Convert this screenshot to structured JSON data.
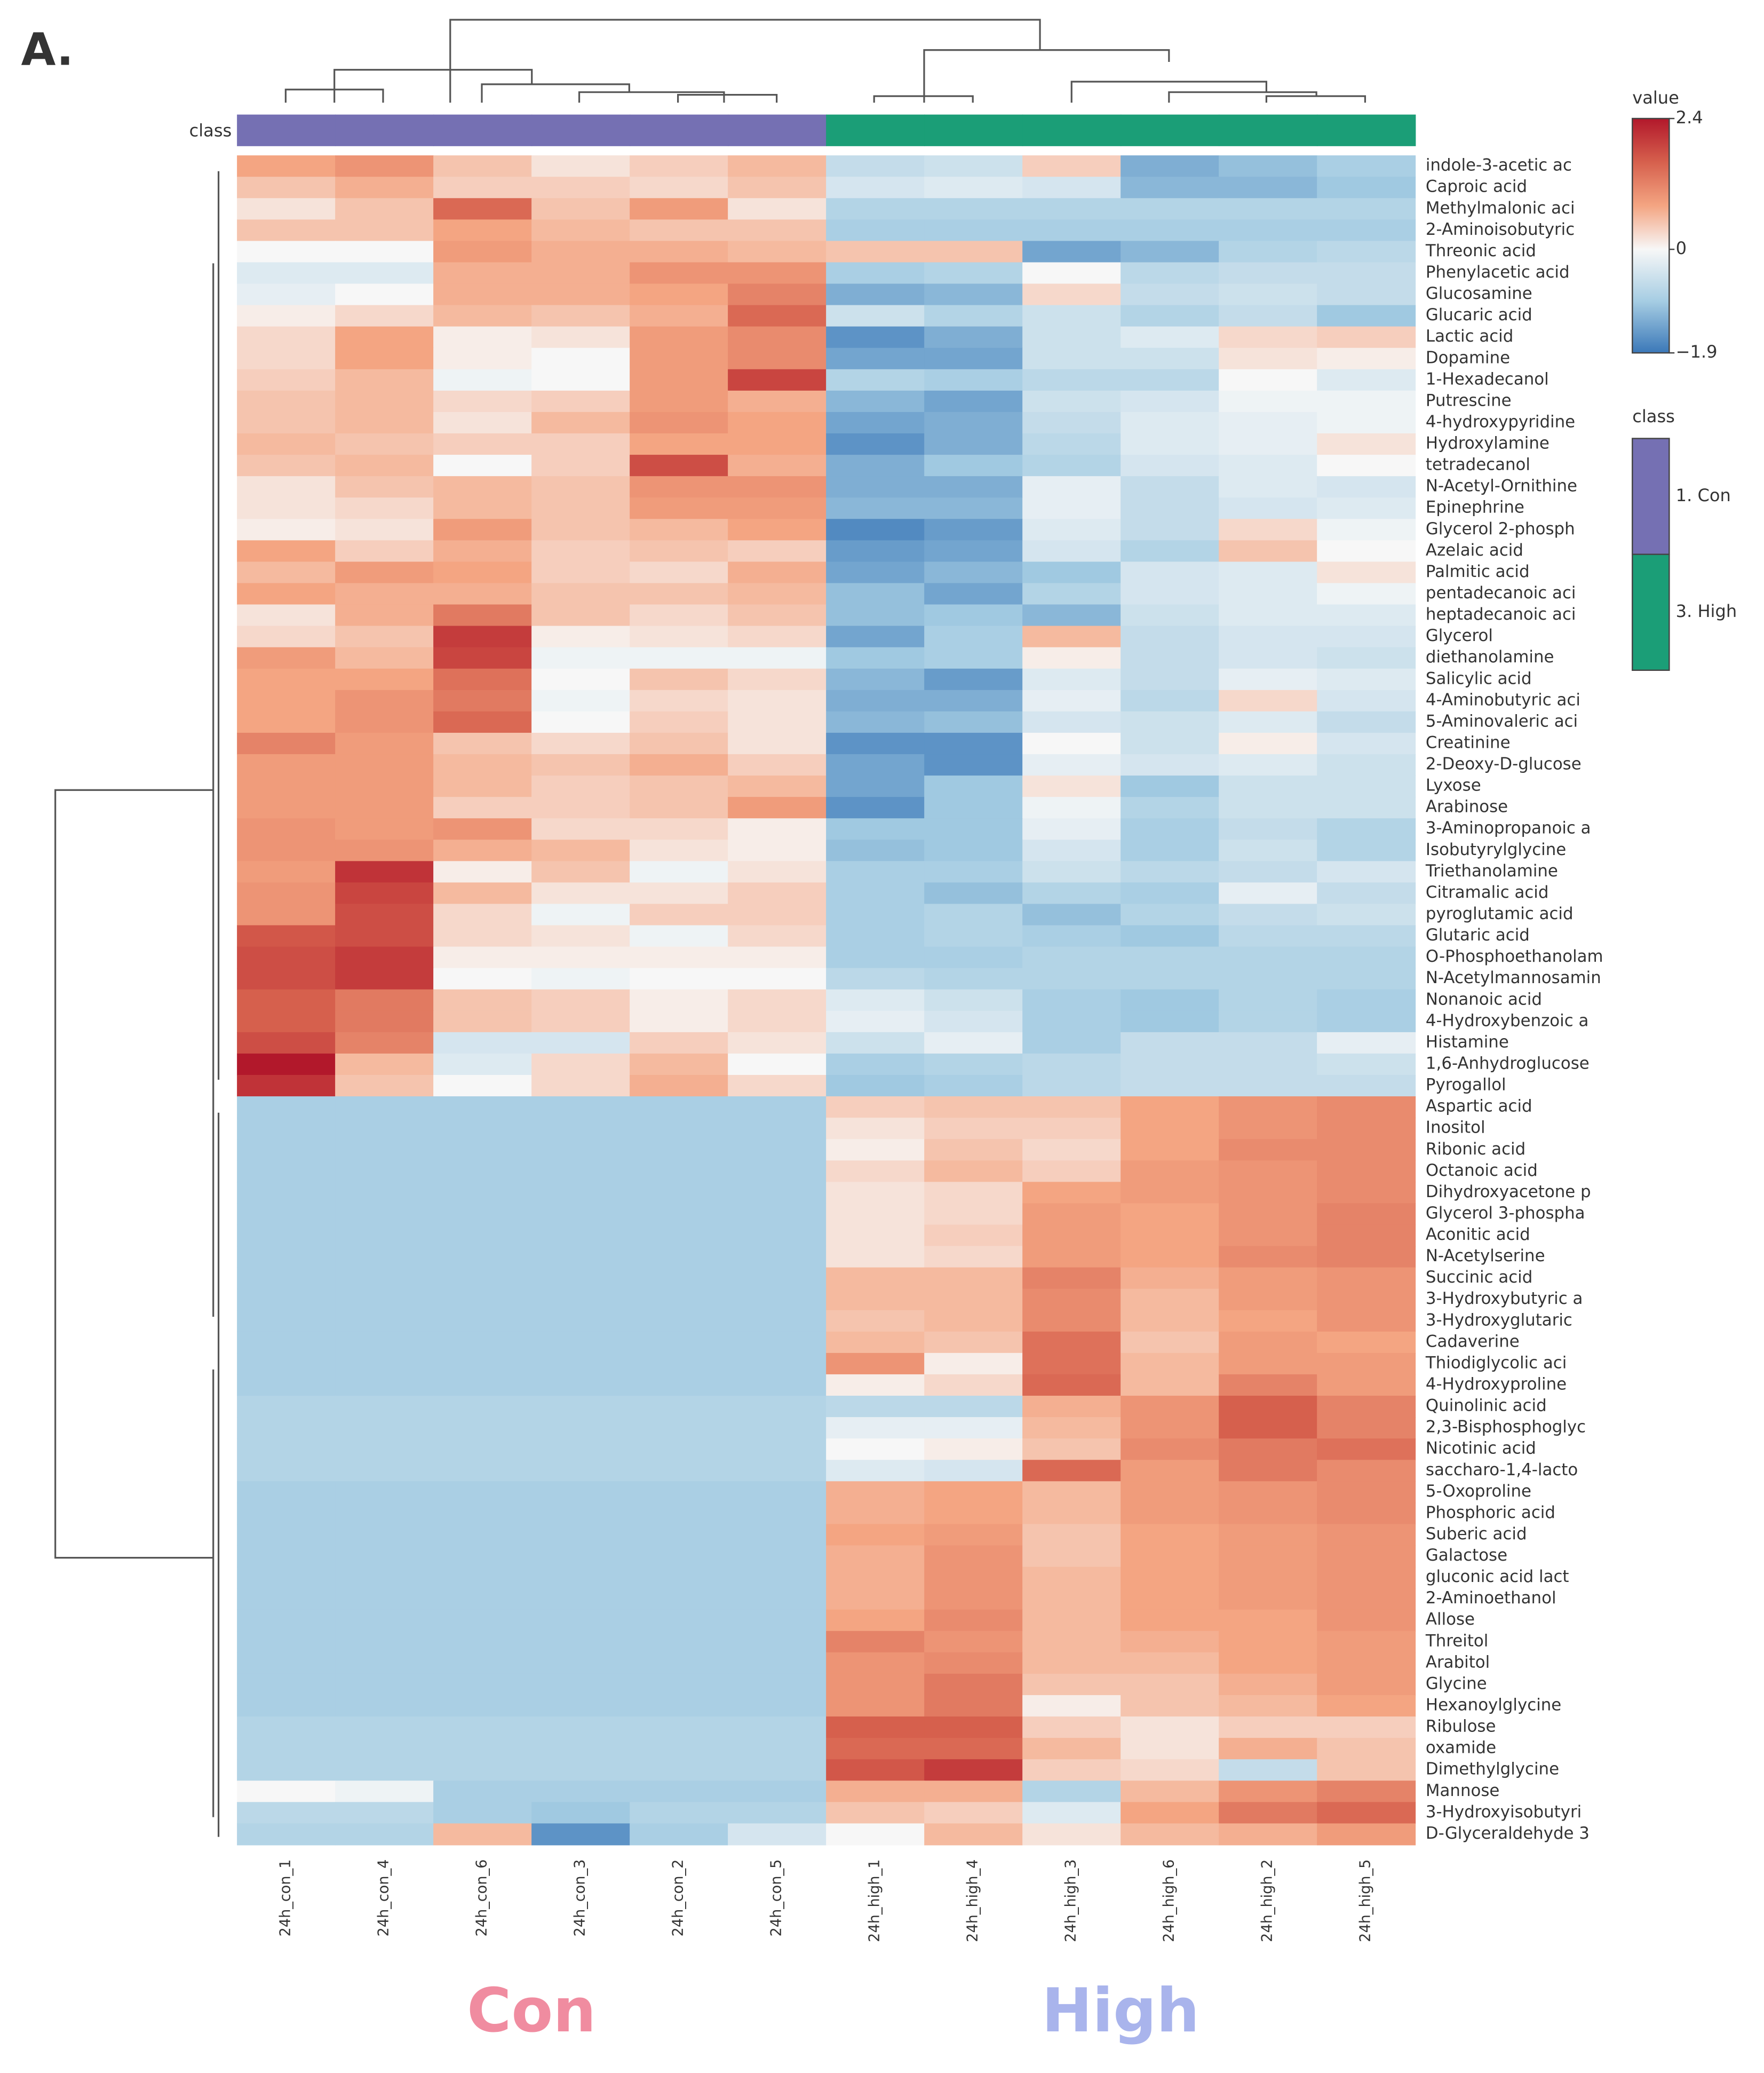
{
  "chart_data": {
    "type": "heatmap",
    "panel_label": "A.",
    "class_axis_label": "class",
    "rows": [
      "indole-3-acetic ac",
      "Caproic acid",
      "Methylmalonic aci",
      "2-Aminoisobutyric",
      "Threonic acid",
      "Phenylacetic acid",
      "Glucosamine",
      "Glucaric acid",
      "Lactic acid",
      "Dopamine",
      "1-Hexadecanol",
      "Putrescine",
      "4-hydroxypyridine",
      "Hydroxylamine",
      "tetradecanol",
      "N-Acetyl-Ornithine",
      "Epinephrine",
      "Glycerol 2-phosph",
      "Azelaic acid",
      "Palmitic acid",
      "pentadecanoic aci",
      "heptadecanoic aci",
      "Glycerol",
      "diethanolamine",
      "Salicylic acid",
      "4-Aminobutyric aci",
      "5-Aminovaleric aci",
      "Creatinine",
      "2-Deoxy-D-glucose",
      "Lyxose",
      "Arabinose",
      "3-Aminopropanoic a",
      "Isobutyrylglycine",
      "Triethanolamine",
      "Citramalic acid",
      "pyroglutamic acid",
      "Glutaric acid",
      "O-Phosphoethanolam",
      "N-Acetylmannosamin",
      "Nonanoic acid",
      "4-Hydroxybenzoic a",
      "Histamine",
      "1,6-Anhydroglucose",
      "Pyrogallol",
      "Aspartic acid",
      "Inositol",
      "Ribonic acid",
      "Octanoic acid",
      "Dihydroxyacetone p",
      "Glycerol 3-phospha",
      "Aconitic acid",
      "N-Acetylserine",
      "Succinic acid",
      "3-Hydroxybutyric a",
      "3-Hydroxyglutaric",
      "Cadaverine",
      "Thiodiglycolic aci",
      "4-Hydroxyproline",
      "Quinolinic acid",
      "2,3-Bisphosphoglyc",
      "Nicotinic acid",
      "saccharo-1,4-lacto",
      "5-Oxoproline",
      "Phosphoric acid",
      "Suberic acid",
      "Galactose",
      "gluconic acid lact",
      "2-Aminoethanol",
      "Allose",
      "Threitol",
      "Arabitol",
      "Glycine",
      "Hexanoylglycine",
      "Ribulose",
      "oxamide",
      "Dimethylglycine",
      "Mannose",
      "3-Hydroxyisobutyri",
      "D-Glyceraldehyde 3"
    ],
    "columns": [
      "24h_con_1",
      "24h_con_4",
      "24h_con_6",
      "24h_con_3",
      "24h_con_2",
      "24h_con_5",
      "24h_high_1",
      "24h_high_4",
      "24h_high_3",
      "24h_high_6",
      "24h_high_2",
      "24h_high_5"
    ],
    "values": [
      [
        0.8,
        1.0,
        0.5,
        0.2,
        0.4,
        0.6,
        -0.6,
        -0.5,
        0.4,
        -1.3,
        -1.1,
        -0.9
      ],
      [
        0.5,
        0.7,
        0.4,
        0.4,
        0.3,
        0.5,
        -0.4,
        -0.3,
        -0.4,
        -1.2,
        -1.2,
        -1.0
      ],
      [
        0.2,
        0.5,
        1.5,
        0.5,
        0.9,
        0.2,
        -0.8,
        -0.8,
        -0.8,
        -0.8,
        -0.8,
        -0.8
      ],
      [
        0.5,
        0.5,
        0.8,
        0.6,
        0.5,
        0.5,
        -0.9,
        -0.9,
        -0.9,
        -0.9,
        -0.9,
        -0.9
      ],
      [
        0.0,
        0.0,
        0.9,
        0.7,
        0.7,
        0.6,
        0.5,
        0.5,
        -1.4,
        -1.2,
        -0.8,
        -0.7
      ],
      [
        -0.3,
        -0.3,
        0.7,
        0.7,
        1.0,
        1.0,
        -0.9,
        -0.8,
        0.0,
        -0.7,
        -0.6,
        -0.6
      ],
      [
        -0.2,
        0.0,
        0.7,
        0.7,
        0.8,
        1.2,
        -1.3,
        -1.2,
        0.3,
        -0.6,
        -0.5,
        -0.6
      ],
      [
        0.1,
        0.3,
        0.6,
        0.5,
        0.7,
        1.5,
        -0.5,
        -0.8,
        -0.5,
        -0.8,
        -0.6,
        -1.0
      ],
      [
        0.3,
        0.8,
        0.1,
        0.2,
        0.9,
        1.1,
        -1.6,
        -1.3,
        -0.5,
        -0.3,
        0.3,
        0.4
      ],
      [
        0.3,
        0.8,
        0.1,
        0.0,
        0.9,
        1.1,
        -1.4,
        -1.4,
        -0.5,
        -0.5,
        0.2,
        0.1
      ],
      [
        0.4,
        0.6,
        -0.1,
        0.0,
        0.9,
        1.9,
        -0.8,
        -0.9,
        -0.7,
        -0.7,
        0.0,
        -0.3
      ],
      [
        0.5,
        0.6,
        0.3,
        0.4,
        0.9,
        0.7,
        -1.2,
        -1.4,
        -0.5,
        -0.4,
        -0.1,
        -0.1
      ],
      [
        0.5,
        0.6,
        0.2,
        0.6,
        1.0,
        0.8,
        -1.4,
        -1.3,
        -0.6,
        -0.3,
        -0.2,
        -0.1
      ],
      [
        0.6,
        0.5,
        0.4,
        0.4,
        0.8,
        0.8,
        -1.6,
        -1.3,
        -0.7,
        -0.3,
        -0.2,
        0.2
      ],
      [
        0.5,
        0.6,
        0.0,
        0.4,
        1.8,
        0.7,
        -1.3,
        -1.0,
        -0.8,
        -0.4,
        -0.3,
        0.0
      ],
      [
        0.2,
        0.5,
        0.6,
        0.5,
        1.0,
        1.0,
        -1.3,
        -1.3,
        -0.2,
        -0.6,
        -0.3,
        -0.4
      ],
      [
        0.2,
        0.3,
        0.6,
        0.5,
        0.9,
        0.9,
        -1.2,
        -1.2,
        -0.2,
        -0.6,
        -0.4,
        -0.3
      ],
      [
        0.1,
        0.2,
        0.9,
        0.5,
        0.6,
        0.8,
        -1.7,
        -1.5,
        -0.3,
        -0.6,
        0.3,
        -0.1
      ],
      [
        0.8,
        0.4,
        0.7,
        0.4,
        0.5,
        0.4,
        -1.5,
        -1.4,
        -0.4,
        -0.8,
        0.5,
        0.0
      ],
      [
        0.6,
        0.9,
        0.8,
        0.4,
        0.3,
        0.7,
        -1.4,
        -1.2,
        -1.0,
        -0.4,
        -0.3,
        0.2
      ],
      [
        0.8,
        0.7,
        0.7,
        0.5,
        0.5,
        0.6,
        -1.1,
        -1.4,
        -0.8,
        -0.4,
        -0.3,
        -0.1
      ],
      [
        0.2,
        0.7,
        1.3,
        0.5,
        0.3,
        0.5,
        -1.1,
        -1.0,
        -1.2,
        -0.5,
        -0.3,
        -0.3
      ],
      [
        0.3,
        0.5,
        2.0,
        0.1,
        0.2,
        0.3,
        -1.4,
        -0.9,
        0.6,
        -0.6,
        -0.4,
        -0.4
      ],
      [
        0.9,
        0.6,
        1.9,
        -0.1,
        -0.1,
        -0.1,
        -1.0,
        -0.9,
        0.1,
        -0.6,
        -0.4,
        -0.5
      ],
      [
        0.8,
        0.8,
        1.4,
        0.0,
        0.5,
        0.3,
        -1.2,
        -1.5,
        -0.3,
        -0.6,
        -0.2,
        -0.3
      ],
      [
        0.8,
        1.0,
        1.3,
        -0.1,
        0.3,
        0.2,
        -1.3,
        -1.3,
        -0.2,
        -0.7,
        0.3,
        -0.4
      ],
      [
        0.8,
        1.0,
        1.5,
        0.0,
        0.4,
        0.2,
        -1.2,
        -1.1,
        -0.4,
        -0.5,
        -0.3,
        -0.6
      ],
      [
        1.2,
        0.9,
        0.5,
        0.3,
        0.5,
        0.2,
        -1.6,
        -1.6,
        0.0,
        -0.5,
        0.1,
        -0.4
      ],
      [
        0.9,
        0.9,
        0.6,
        0.5,
        0.7,
        0.4,
        -1.4,
        -1.6,
        -0.2,
        -0.4,
        -0.3,
        -0.5
      ],
      [
        0.9,
        0.9,
        0.6,
        0.4,
        0.5,
        0.6,
        -1.4,
        -1.0,
        0.2,
        -1.0,
        -0.5,
        -0.5
      ],
      [
        0.9,
        0.9,
        0.4,
        0.4,
        0.5,
        0.9,
        -1.6,
        -1.0,
        -0.1,
        -0.8,
        -0.5,
        -0.5
      ],
      [
        1.0,
        0.9,
        1.0,
        0.3,
        0.3,
        0.1,
        -1.0,
        -1.0,
        -0.2,
        -0.9,
        -0.6,
        -0.8
      ],
      [
        1.0,
        1.0,
        0.7,
        0.6,
        0.2,
        0.1,
        -1.1,
        -1.0,
        -0.4,
        -0.9,
        -0.5,
        -0.8
      ],
      [
        0.9,
        2.1,
        0.1,
        0.5,
        -0.1,
        0.2,
        -0.9,
        -0.9,
        -0.5,
        -0.7,
        -0.6,
        -0.4
      ],
      [
        1.0,
        1.9,
        0.6,
        0.2,
        0.2,
        0.4,
        -0.9,
        -1.1,
        -0.8,
        -0.9,
        -0.2,
        -0.6
      ],
      [
        1.0,
        1.8,
        0.3,
        -0.1,
        0.4,
        0.4,
        -0.9,
        -0.8,
        -1.1,
        -0.8,
        -0.6,
        -0.5
      ],
      [
        1.7,
        1.8,
        0.3,
        0.2,
        -0.1,
        0.3,
        -0.9,
        -0.8,
        -0.9,
        -1.0,
        -0.7,
        -0.7
      ],
      [
        1.8,
        2.0,
        0.1,
        0.1,
        0.1,
        0.1,
        -0.9,
        -0.9,
        -0.8,
        -0.8,
        -0.8,
        -0.8
      ],
      [
        1.8,
        2.0,
        0.0,
        -0.1,
        0.0,
        0.0,
        -0.7,
        -0.8,
        -0.8,
        -0.8,
        -0.8,
        -0.8
      ],
      [
        1.6,
        1.3,
        0.5,
        0.4,
        0.1,
        0.3,
        -0.3,
        -0.5,
        -0.9,
        -1.0,
        -0.8,
        -0.9
      ],
      [
        1.6,
        1.3,
        0.5,
        0.4,
        0.1,
        0.3,
        -0.2,
        -0.4,
        -0.9,
        -1.0,
        -0.8,
        -0.9
      ],
      [
        1.8,
        1.2,
        -0.4,
        -0.4,
        0.4,
        0.2,
        -0.5,
        -0.2,
        -0.9,
        -0.6,
        -0.6,
        -0.2
      ],
      [
        2.4,
        0.6,
        -0.3,
        0.3,
        0.6,
        0.0,
        -0.9,
        -0.8,
        -0.7,
        -0.6,
        -0.6,
        -0.5
      ],
      [
        2.1,
        0.5,
        0.0,
        0.3,
        0.7,
        0.3,
        -1.0,
        -0.9,
        -0.7,
        -0.6,
        -0.6,
        -0.6
      ],
      [
        -0.9,
        -0.9,
        -0.9,
        -0.9,
        -0.9,
        -0.9,
        0.4,
        0.5,
        0.5,
        0.8,
        1.0,
        1.1
      ],
      [
        -0.9,
        -0.9,
        -0.9,
        -0.9,
        -0.9,
        -0.9,
        0.2,
        0.4,
        0.4,
        0.8,
        1.0,
        1.1
      ],
      [
        -0.9,
        -0.9,
        -0.9,
        -0.9,
        -0.9,
        -0.9,
        0.1,
        0.5,
        0.3,
        0.8,
        1.1,
        1.1
      ],
      [
        -0.9,
        -0.9,
        -0.9,
        -0.9,
        -0.9,
        -0.9,
        0.3,
        0.6,
        0.4,
        0.9,
        1.0,
        1.1
      ],
      [
        -0.9,
        -0.9,
        -0.9,
        -0.9,
        -0.9,
        -0.9,
        0.2,
        0.3,
        0.8,
        0.9,
        1.0,
        1.1
      ],
      [
        -0.9,
        -0.9,
        -0.9,
        -0.9,
        -0.9,
        -0.9,
        0.2,
        0.3,
        0.9,
        0.8,
        1.0,
        1.2
      ],
      [
        -0.9,
        -0.9,
        -0.9,
        -0.9,
        -0.9,
        -0.9,
        0.2,
        0.4,
        0.9,
        0.8,
        1.0,
        1.2
      ],
      [
        -0.9,
        -0.9,
        -0.9,
        -0.9,
        -0.9,
        -0.9,
        0.2,
        0.3,
        0.9,
        0.8,
        1.1,
        1.2
      ],
      [
        -0.9,
        -0.9,
        -0.9,
        -0.9,
        -0.9,
        -0.9,
        0.6,
        0.6,
        1.2,
        0.7,
        0.9,
        1.0
      ],
      [
        -0.9,
        -0.9,
        -0.9,
        -0.9,
        -0.9,
        -0.9,
        0.6,
        0.6,
        1.1,
        0.6,
        0.9,
        1.0
      ],
      [
        -0.9,
        -0.9,
        -0.9,
        -0.9,
        -0.9,
        -0.9,
        0.5,
        0.6,
        1.1,
        0.6,
        0.8,
        1.0
      ],
      [
        -0.9,
        -0.9,
        -0.9,
        -0.9,
        -0.9,
        -0.9,
        0.6,
        0.5,
        1.4,
        0.5,
        0.9,
        0.8
      ],
      [
        -0.9,
        -0.9,
        -0.9,
        -0.9,
        -0.9,
        -0.9,
        1.0,
        0.1,
        1.4,
        0.6,
        0.9,
        0.9
      ],
      [
        -0.9,
        -0.9,
        -0.9,
        -0.9,
        -0.9,
        -0.9,
        0.1,
        0.3,
        1.5,
        0.6,
        1.2,
        0.9
      ],
      [
        -0.8,
        -0.8,
        -0.8,
        -0.8,
        -0.8,
        -0.8,
        -0.7,
        -0.7,
        0.7,
        1.0,
        1.6,
        1.2
      ],
      [
        -0.8,
        -0.8,
        -0.8,
        -0.8,
        -0.8,
        -0.8,
        -0.2,
        -0.2,
        0.6,
        1.0,
        1.6,
        1.2
      ],
      [
        -0.8,
        -0.8,
        -0.8,
        -0.8,
        -0.8,
        -0.8,
        0.0,
        0.1,
        0.5,
        1.1,
        1.3,
        1.4
      ],
      [
        -0.8,
        -0.8,
        -0.8,
        -0.8,
        -0.8,
        -0.8,
        -0.3,
        -0.4,
        1.5,
        0.9,
        1.3,
        1.1
      ],
      [
        -0.9,
        -0.9,
        -0.9,
        -0.9,
        -0.9,
        -0.9,
        0.7,
        0.8,
        0.6,
        0.9,
        1.0,
        1.1
      ],
      [
        -0.9,
        -0.9,
        -0.9,
        -0.9,
        -0.9,
        -0.9,
        0.7,
        0.8,
        0.6,
        0.9,
        1.0,
        1.1
      ],
      [
        -0.9,
        -0.9,
        -0.9,
        -0.9,
        -0.9,
        -0.9,
        0.8,
        0.9,
        0.5,
        0.8,
        0.9,
        1.0
      ],
      [
        -0.9,
        -0.9,
        -0.9,
        -0.9,
        -0.9,
        -0.9,
        0.7,
        1.0,
        0.5,
        0.8,
        0.9,
        1.0
      ],
      [
        -0.9,
        -0.9,
        -0.9,
        -0.9,
        -0.9,
        -0.9,
        0.7,
        1.0,
        0.6,
        0.8,
        0.9,
        1.0
      ],
      [
        -0.9,
        -0.9,
        -0.9,
        -0.9,
        -0.9,
        -0.9,
        0.7,
        1.0,
        0.6,
        0.8,
        0.9,
        1.0
      ],
      [
        -0.9,
        -0.9,
        -0.9,
        -0.9,
        -0.9,
        -0.9,
        0.8,
        1.1,
        0.6,
        0.8,
        0.8,
        1.0
      ],
      [
        -0.9,
        -0.9,
        -0.9,
        -0.9,
        -0.9,
        -0.9,
        1.2,
        1.0,
        0.6,
        0.7,
        0.8,
        0.9
      ],
      [
        -0.9,
        -0.9,
        -0.9,
        -0.9,
        -0.9,
        -0.9,
        1.0,
        1.1,
        0.6,
        0.6,
        0.8,
        0.9
      ],
      [
        -0.9,
        -0.9,
        -0.9,
        -0.9,
        -0.9,
        -0.9,
        1.0,
        1.3,
        0.5,
        0.5,
        0.7,
        0.9
      ],
      [
        -0.9,
        -0.9,
        -0.9,
        -0.9,
        -0.9,
        -0.9,
        1.0,
        1.3,
        0.1,
        0.5,
        0.6,
        0.8
      ],
      [
        -0.8,
        -0.8,
        -0.8,
        -0.8,
        -0.8,
        -0.8,
        1.6,
        1.6,
        0.4,
        0.2,
        0.4,
        0.4
      ],
      [
        -0.8,
        -0.8,
        -0.8,
        -0.8,
        -0.8,
        -0.8,
        1.5,
        1.5,
        0.6,
        0.2,
        0.7,
        0.5
      ],
      [
        -0.8,
        -0.8,
        -0.8,
        -0.8,
        -0.8,
        -0.8,
        1.7,
        2.0,
        0.4,
        0.3,
        -0.6,
        0.5
      ],
      [
        0.0,
        -0.1,
        -0.9,
        -0.9,
        -0.9,
        -0.9,
        0.7,
        0.7,
        -0.8,
        0.6,
        1.0,
        1.2
      ],
      [
        -0.7,
        -0.7,
        -0.9,
        -1.0,
        -0.8,
        -0.8,
        0.5,
        0.4,
        -0.3,
        0.8,
        1.3,
        1.5
      ],
      [
        -0.8,
        -0.8,
        0.6,
        -1.6,
        -0.9,
        -0.4,
        0.0,
        0.6,
        0.2,
        0.6,
        0.7,
        0.9
      ]
    ],
    "zlim": [
      -1.9,
      2.4
    ],
    "zticks": [
      2.4,
      0,
      {
        "value": -1.9,
        "label": "−1.9"
      }
    ],
    "colorbar_title": "value",
    "colorscale": [
      "#3b78b8",
      "#a6cde3",
      "#f7f7f7",
      "#f4a582",
      "#d6604d",
      "#b2182b"
    ],
    "class_legend_title": "class",
    "classes": [
      {
        "name": "1. Con",
        "color": "#7570b3"
      },
      {
        "name": "3. High",
        "color": "#1b9e77"
      }
    ],
    "column_class": [
      0,
      0,
      0,
      0,
      0,
      0,
      1,
      1,
      1,
      1,
      1,
      1
    ],
    "group_labels": [
      {
        "text": "Con",
        "color": "#f08ca0"
      },
      {
        "text": "High",
        "color": "#a9b4ec"
      }
    ]
  }
}
